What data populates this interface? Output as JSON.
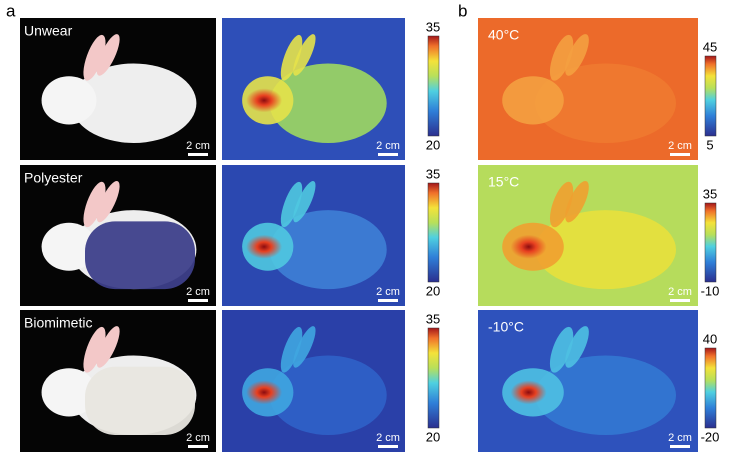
{
  "panel_labels": [
    "a",
    "b"
  ],
  "panel_a": [
    {
      "label": "Unwear",
      "photo_scale_bar": "2 cm",
      "thermal_scale_bar": "2 cm",
      "colorbar": {
        "max": 35,
        "min": 20
      }
    },
    {
      "label": "Polyester",
      "photo_scale_bar": "2 cm",
      "thermal_scale_bar": "2 cm",
      "colorbar": {
        "max": 35,
        "min": 20
      }
    },
    {
      "label": "Biomimetic",
      "photo_scale_bar": "2 cm",
      "thermal_scale_bar": "2 cm",
      "colorbar": {
        "max": 35,
        "min": 20
      }
    }
  ],
  "panel_b": [
    {
      "label": "40°C",
      "scale_bar": "2 cm",
      "colorbar": {
        "max": 45,
        "min": 5
      }
    },
    {
      "label": "15°C",
      "scale_bar": "2 cm",
      "colorbar": {
        "max": 35,
        "min": -10
      }
    },
    {
      "label": "-10°C",
      "scale_bar": "2 cm",
      "colorbar": {
        "max": 40,
        "min": -20
      }
    }
  ]
}
